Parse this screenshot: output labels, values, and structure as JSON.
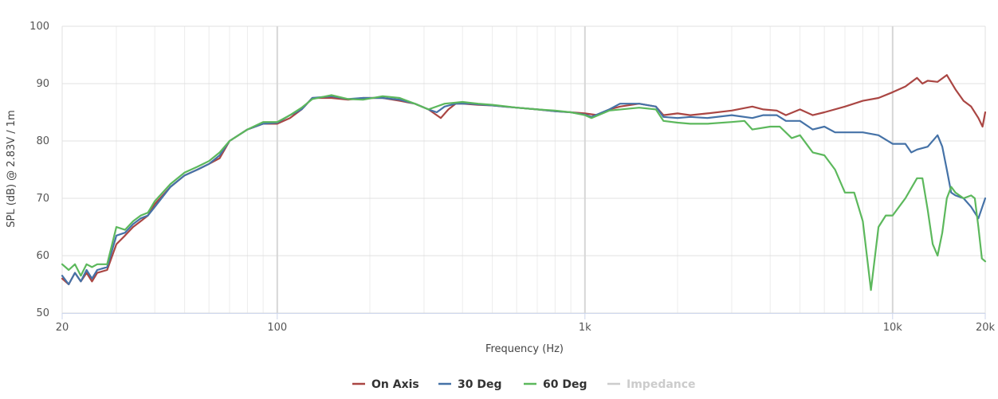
{
  "chart_data": {
    "type": "line",
    "xlabel": "Frequency (Hz)",
    "ylabel": "SPL (dB) @ 2.83V / 1m",
    "xscale": "log",
    "xlim": [
      20,
      20000
    ],
    "ylim": [
      50,
      100
    ],
    "grid": true,
    "legend_position": "bottom-center",
    "x_ticks": [
      {
        "value": 20,
        "label": "20"
      },
      {
        "value": 100,
        "label": "100"
      },
      {
        "value": 1000,
        "label": "1k"
      },
      {
        "value": 10000,
        "label": "10k"
      },
      {
        "value": 20000,
        "label": "20k"
      }
    ],
    "y_ticks": [
      {
        "value": 50,
        "label": "50"
      },
      {
        "value": 60,
        "label": "60"
      },
      {
        "value": 70,
        "label": "70"
      },
      {
        "value": 80,
        "label": "80"
      },
      {
        "value": 90,
        "label": "90"
      },
      {
        "value": 100,
        "label": "100"
      }
    ],
    "series": [
      {
        "name": "On Axis",
        "color": "#aa4643",
        "visible": true,
        "points": [
          [
            20,
            56
          ],
          [
            21,
            55
          ],
          [
            22,
            57
          ],
          [
            23,
            55.5
          ],
          [
            24,
            57
          ],
          [
            25,
            55.5
          ],
          [
            26,
            57
          ],
          [
            28,
            57.5
          ],
          [
            30,
            62
          ],
          [
            32,
            63.5
          ],
          [
            34,
            65
          ],
          [
            36,
            66
          ],
          [
            38,
            67
          ],
          [
            40,
            69
          ],
          [
            45,
            72
          ],
          [
            50,
            74
          ],
          [
            55,
            75
          ],
          [
            60,
            76
          ],
          [
            65,
            77
          ],
          [
            70,
            80
          ],
          [
            80,
            82
          ],
          [
            90,
            83
          ],
          [
            100,
            83
          ],
          [
            110,
            84
          ],
          [
            120,
            85.5
          ],
          [
            130,
            87.5
          ],
          [
            150,
            87.5
          ],
          [
            170,
            87.2
          ],
          [
            190,
            87.5
          ],
          [
            220,
            87.5
          ],
          [
            250,
            87
          ],
          [
            280,
            86.5
          ],
          [
            310,
            85.5
          ],
          [
            330,
            84.5
          ],
          [
            340,
            84
          ],
          [
            360,
            85.5
          ],
          [
            380,
            86.5
          ],
          [
            400,
            86.5
          ],
          [
            450,
            86.3
          ],
          [
            500,
            86.2
          ],
          [
            600,
            85.8
          ],
          [
            700,
            85.5
          ],
          [
            800,
            85.2
          ],
          [
            900,
            85
          ],
          [
            1000,
            84.8
          ],
          [
            1100,
            84.5
          ],
          [
            1200,
            85.5
          ],
          [
            1300,
            86
          ],
          [
            1500,
            86.5
          ],
          [
            1700,
            86
          ],
          [
            1800,
            84.5
          ],
          [
            2000,
            84.8
          ],
          [
            2200,
            84.5
          ],
          [
            2500,
            84.8
          ],
          [
            3000,
            85.3
          ],
          [
            3500,
            86
          ],
          [
            3800,
            85.5
          ],
          [
            4200,
            85.3
          ],
          [
            4500,
            84.5
          ],
          [
            5000,
            85.5
          ],
          [
            5500,
            84.5
          ],
          [
            6000,
            85
          ],
          [
            7000,
            86
          ],
          [
            8000,
            87
          ],
          [
            9000,
            87.5
          ],
          [
            10000,
            88.5
          ],
          [
            11000,
            89.5
          ],
          [
            12000,
            91
          ],
          [
            12500,
            90
          ],
          [
            13000,
            90.5
          ],
          [
            14000,
            90.3
          ],
          [
            15000,
            91.5
          ],
          [
            16000,
            89
          ],
          [
            17000,
            87
          ],
          [
            18000,
            86
          ],
          [
            19000,
            84
          ],
          [
            19600,
            82.5
          ],
          [
            20000,
            85
          ]
        ]
      },
      {
        "name": "30 Deg",
        "color": "#4572a7",
        "visible": true,
        "points": [
          [
            20,
            56.5
          ],
          [
            21,
            55
          ],
          [
            22,
            57
          ],
          [
            23,
            55.5
          ],
          [
            24,
            57.5
          ],
          [
            25,
            56
          ],
          [
            26,
            57.5
          ],
          [
            28,
            58
          ],
          [
            30,
            63.5
          ],
          [
            32,
            64
          ],
          [
            34,
            65.5
          ],
          [
            36,
            66.5
          ],
          [
            38,
            67
          ],
          [
            40,
            68.5
          ],
          [
            45,
            72
          ],
          [
            50,
            74
          ],
          [
            55,
            75
          ],
          [
            60,
            76
          ],
          [
            65,
            77.5
          ],
          [
            70,
            80
          ],
          [
            80,
            82
          ],
          [
            90,
            83
          ],
          [
            100,
            83.2
          ],
          [
            110,
            84.5
          ],
          [
            120,
            85.5
          ],
          [
            130,
            87.5
          ],
          [
            150,
            87.8
          ],
          [
            170,
            87.3
          ],
          [
            190,
            87.5
          ],
          [
            220,
            87.5
          ],
          [
            250,
            87.2
          ],
          [
            280,
            86.5
          ],
          [
            310,
            85.5
          ],
          [
            330,
            85
          ],
          [
            350,
            86
          ],
          [
            380,
            86.5
          ],
          [
            420,
            86.5
          ],
          [
            500,
            86.2
          ],
          [
            600,
            85.8
          ],
          [
            700,
            85.5
          ],
          [
            800,
            85.2
          ],
          [
            900,
            85
          ],
          [
            1000,
            84.6
          ],
          [
            1050,
            84.2
          ],
          [
            1200,
            85.5
          ],
          [
            1300,
            86.5
          ],
          [
            1500,
            86.5
          ],
          [
            1700,
            86
          ],
          [
            1800,
            84.2
          ],
          [
            2000,
            84
          ],
          [
            2200,
            84.2
          ],
          [
            2500,
            84
          ],
          [
            3000,
            84.5
          ],
          [
            3500,
            84
          ],
          [
            3800,
            84.5
          ],
          [
            4200,
            84.5
          ],
          [
            4500,
            83.5
          ],
          [
            5000,
            83.5
          ],
          [
            5500,
            82
          ],
          [
            6000,
            82.5
          ],
          [
            6500,
            81.5
          ],
          [
            7000,
            81.5
          ],
          [
            8000,
            81.5
          ],
          [
            9000,
            81
          ],
          [
            10000,
            79.5
          ],
          [
            11000,
            79.5
          ],
          [
            11500,
            78
          ],
          [
            12000,
            78.5
          ],
          [
            13000,
            79
          ],
          [
            14000,
            81
          ],
          [
            14500,
            79
          ],
          [
            15000,
            75
          ],
          [
            15500,
            71
          ],
          [
            16000,
            70.5
          ],
          [
            17000,
            70
          ],
          [
            18000,
            68.5
          ],
          [
            19000,
            66.5
          ],
          [
            20000,
            70
          ]
        ]
      },
      {
        "name": "60 Deg",
        "color": "#5cb85c",
        "visible": true,
        "points": [
          [
            20,
            58.5
          ],
          [
            21,
            57.5
          ],
          [
            22,
            58.5
          ],
          [
            23,
            56.5
          ],
          [
            24,
            58.5
          ],
          [
            25,
            58
          ],
          [
            26,
            58.5
          ],
          [
            28,
            58.5
          ],
          [
            30,
            65
          ],
          [
            32,
            64.5
          ],
          [
            34,
            66
          ],
          [
            36,
            67
          ],
          [
            38,
            67.5
          ],
          [
            40,
            69.5
          ],
          [
            45,
            72.5
          ],
          [
            50,
            74.5
          ],
          [
            55,
            75.5
          ],
          [
            60,
            76.5
          ],
          [
            65,
            78
          ],
          [
            70,
            80
          ],
          [
            80,
            82
          ],
          [
            90,
            83.3
          ],
          [
            100,
            83.3
          ],
          [
            110,
            84.5
          ],
          [
            120,
            85.8
          ],
          [
            130,
            87.3
          ],
          [
            150,
            88
          ],
          [
            170,
            87.3
          ],
          [
            190,
            87.2
          ],
          [
            220,
            87.8
          ],
          [
            250,
            87.5
          ],
          [
            280,
            86.5
          ],
          [
            310,
            85.5
          ],
          [
            350,
            86.5
          ],
          [
            400,
            86.8
          ],
          [
            450,
            86.5
          ],
          [
            500,
            86.3
          ],
          [
            600,
            85.8
          ],
          [
            700,
            85.5
          ],
          [
            800,
            85.3
          ],
          [
            900,
            85
          ],
          [
            1000,
            84.5
          ],
          [
            1050,
            84
          ],
          [
            1200,
            85.3
          ],
          [
            1500,
            85.8
          ],
          [
            1700,
            85.5
          ],
          [
            1800,
            83.5
          ],
          [
            2000,
            83.2
          ],
          [
            2200,
            83
          ],
          [
            2500,
            83
          ],
          [
            3000,
            83.3
          ],
          [
            3300,
            83.5
          ],
          [
            3500,
            82
          ],
          [
            4000,
            82.5
          ],
          [
            4300,
            82.5
          ],
          [
            4700,
            80.5
          ],
          [
            5000,
            81
          ],
          [
            5500,
            78
          ],
          [
            6000,
            77.5
          ],
          [
            6500,
            75
          ],
          [
            7000,
            71
          ],
          [
            7500,
            71
          ],
          [
            8000,
            66
          ],
          [
            8500,
            54
          ],
          [
            9000,
            65
          ],
          [
            9500,
            67
          ],
          [
            10000,
            67
          ],
          [
            11000,
            70
          ],
          [
            12000,
            73.5
          ],
          [
            12500,
            73.5
          ],
          [
            13000,
            68
          ],
          [
            13500,
            62
          ],
          [
            14000,
            60
          ],
          [
            14500,
            64
          ],
          [
            15000,
            70
          ],
          [
            15500,
            72
          ],
          [
            16000,
            71
          ],
          [
            17000,
            70
          ],
          [
            18000,
            70.5
          ],
          [
            18500,
            70
          ],
          [
            19000,
            65
          ],
          [
            19500,
            59.5
          ],
          [
            20000,
            59
          ]
        ]
      },
      {
        "name": "Impedance",
        "color": "#cccccc",
        "visible": false,
        "points": []
      }
    ]
  }
}
